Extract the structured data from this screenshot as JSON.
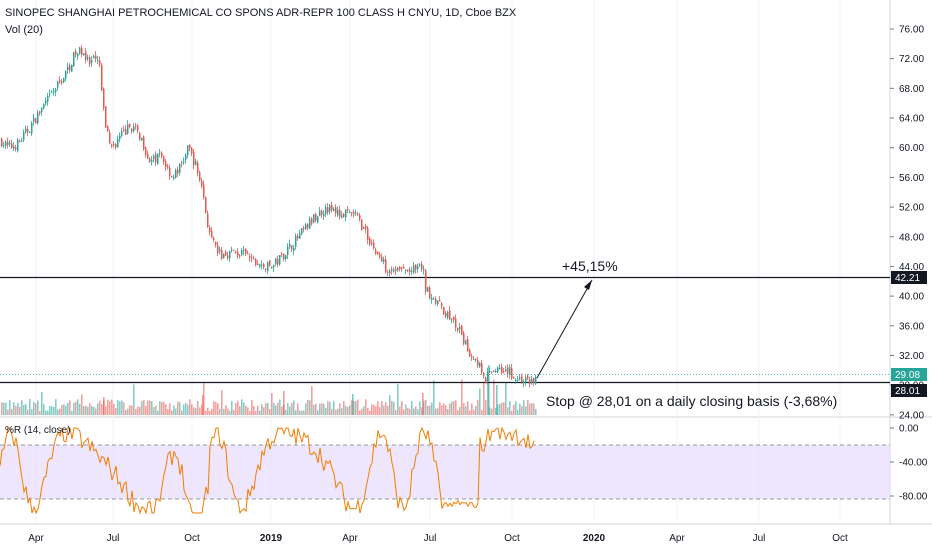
{
  "header": {
    "title": "SINOPEC SHANGHAI PETROCHEMICAL CO SPONS ADR-REPR 100 CLASS H CNYU, 1D, Cboe BZX",
    "volume_label": "Vol (20)",
    "oscillator_label": "%R (14, close)"
  },
  "annotations": {
    "gain": "+45,15%",
    "stop": "Stop @ 28,01 on a daily closing basis (-3,68%)"
  },
  "levels": {
    "resistance": "42.21",
    "last": "29.08",
    "stop": "28.01"
  },
  "colors": {
    "up": "#26a69a",
    "down": "#ef5350",
    "wr_line": "#f57c00",
    "wr_band": "#e8defc",
    "background": "#ffffff"
  },
  "chart_data": {
    "type": "candlestick",
    "title": "SINOPEC SHANGHAI PETROCHEMICAL CO SPONS ADR-REPR 100 CLASS H CNYU, 1D, Cboe BZX",
    "x_ticks": [
      "Apr",
      "Jul",
      "Oct",
      "2019",
      "Apr",
      "Jul",
      "Oct",
      "2020",
      "Apr",
      "Jul",
      "Oct"
    ],
    "y_ticks": [
      "76.00",
      "72.00",
      "68.00",
      "64.00",
      "60.00",
      "56.00",
      "52.00",
      "48.00",
      "44.00",
      "40.00",
      "36.00",
      "32.00",
      "28.00",
      "24.00"
    ],
    "ylim": [
      24,
      77.5
    ],
    "price_path": [
      [
        0,
        61
      ],
      [
        8,
        60
      ],
      [
        17,
        60.5
      ],
      [
        28,
        62.5
      ],
      [
        40,
        65
      ],
      [
        55,
        68
      ],
      [
        65,
        70
      ],
      [
        74,
        72.5
      ],
      [
        82,
        73.2
      ],
      [
        88,
        71.2
      ],
      [
        94,
        71.8
      ],
      [
        100,
        71
      ],
      [
        101,
        67.5
      ],
      [
        104,
        63.5
      ],
      [
        111,
        60
      ],
      [
        120,
        61.5
      ],
      [
        130,
        63
      ],
      [
        140,
        61.5
      ],
      [
        150,
        58
      ],
      [
        160,
        59
      ],
      [
        172,
        56
      ],
      [
        180,
        57.5
      ],
      [
        188,
        60
      ],
      [
        194,
        58
      ],
      [
        201,
        55
      ],
      [
        204,
        52.2
      ],
      [
        210,
        47.5
      ],
      [
        220,
        45.5
      ],
      [
        232,
        46
      ],
      [
        245,
        45.5
      ],
      [
        260,
        44
      ],
      [
        272,
        44
      ],
      [
        282,
        45.5
      ],
      [
        295,
        47.5
      ],
      [
        310,
        50
      ],
      [
        325,
        52
      ],
      [
        340,
        51
      ],
      [
        355,
        51
      ],
      [
        365,
        48.5
      ],
      [
        375,
        46
      ],
      [
        385,
        44
      ],
      [
        395,
        43.6
      ],
      [
        405,
        43.4
      ],
      [
        415,
        43.5
      ],
      [
        422,
        44
      ],
      [
        425,
        41
      ],
      [
        433,
        39.8
      ],
      [
        440,
        38.5
      ],
      [
        450,
        37
      ],
      [
        460,
        35
      ],
      [
        468,
        32.5
      ],
      [
        478,
        31
      ],
      [
        485,
        29
      ],
      [
        490,
        29.6
      ],
      [
        498,
        30.5
      ],
      [
        507,
        30
      ],
      [
        515,
        29
      ],
      [
        525,
        28.6
      ],
      [
        535,
        28.7
      ]
    ],
    "williams_r_ticks": [
      "0.00",
      "-40.00",
      "-80.00"
    ],
    "williams_r_levels": [
      -20,
      -80
    ],
    "williams_r_range": [
      -100,
      0
    ],
    "projection": {
      "from_value": 29.08,
      "to_value": 42.21,
      "label": "+45,15%"
    },
    "horizontal_lines": [
      42.21,
      28.01
    ]
  }
}
